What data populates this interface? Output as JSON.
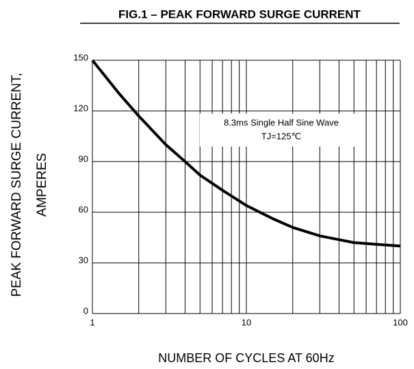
{
  "chart_data": {
    "type": "line",
    "title": "FIG.1 – PEAK FORWARD SURGE CURRENT",
    "ylabel": [
      "PEAK FORWARD SURGE CURRENT,",
      "AMPERES"
    ],
    "xlabel": "NUMBER  OF  CYCLES AT 60Hz",
    "annotation": [
      "8.3ms Single Half Sine Wave",
      "TJ=125℃"
    ],
    "x": [
      1,
      1.5,
      2,
      3,
      4,
      5,
      7,
      10,
      15,
      20,
      30,
      50,
      70,
      100
    ],
    "series": [
      {
        "name": "surge",
        "color": "#000000",
        "values": [
          150,
          130,
          117,
          100,
          90,
          82,
          73,
          64,
          56,
          51,
          46,
          42,
          41,
          40
        ]
      }
    ],
    "xlim": [
      1,
      100
    ],
    "ylim": [
      0,
      150
    ],
    "xticks": [
      1,
      10,
      100
    ],
    "yticks": [
      0,
      30,
      60,
      90,
      120,
      150
    ],
    "xgrid": [
      2,
      3,
      4,
      5,
      6,
      7,
      8,
      9,
      20,
      30,
      40,
      50,
      60,
      70,
      80,
      90
    ],
    "xscale": "log",
    "grid": true
  }
}
